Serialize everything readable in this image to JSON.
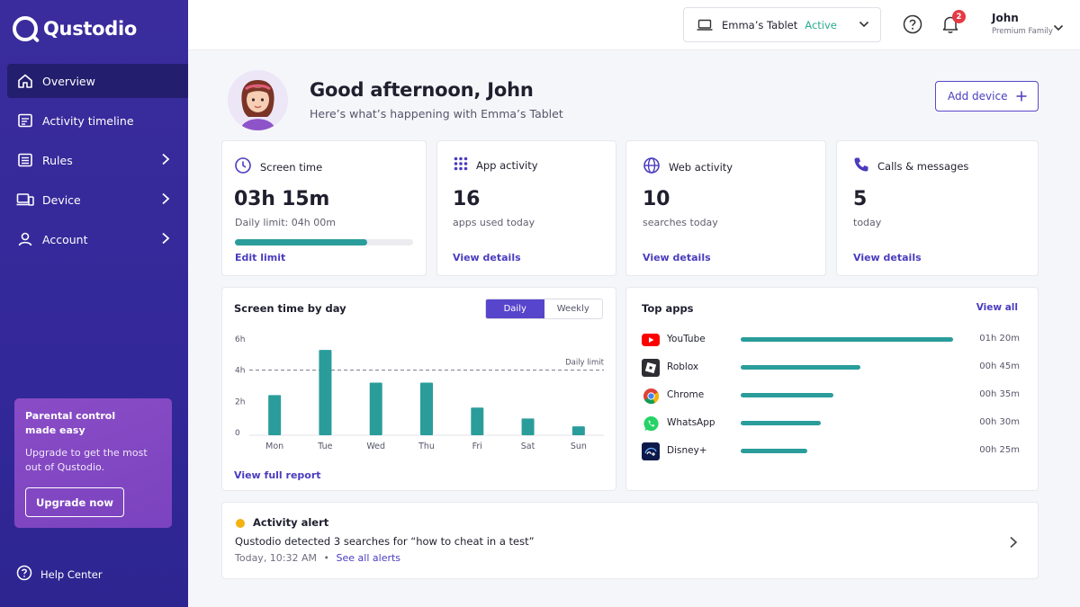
{
  "brand": {
    "name": "Qustodio"
  },
  "sidebar": {
    "items": [
      {
        "label": "Overview",
        "icon": "home-icon"
      },
      {
        "label": "Activity timeline",
        "icon": "timeline-icon"
      },
      {
        "label": "Rules",
        "icon": "rules-icon"
      },
      {
        "label": "Device",
        "icon": "device-icon"
      },
      {
        "label": "Account",
        "icon": "account-icon"
      }
    ],
    "promo": {
      "title": "Parental control made easy",
      "text": "Upgrade to get the most out of Qustodio.",
      "button": "Upgrade now"
    },
    "help": "Help Center"
  },
  "topbar": {
    "device_name": "Emma’s Tablet",
    "device_status": "Active",
    "notification_count": "2",
    "user_name": "John",
    "user_plan": "Premium Family"
  },
  "header": {
    "greeting": "Good afternoon, John",
    "subtitle": "Here’s what’s happening with Emma’s Tablet",
    "add_device": "Add device"
  },
  "stats": {
    "screen_time": {
      "title": "Screen time",
      "value": "03h 15m",
      "sub": "Daily limit: 04h 00m",
      "link": "Edit limit",
      "progress": 0.74
    },
    "app_activity": {
      "title": "App activity",
      "value": "16",
      "sub": "apps used today",
      "link": "View details"
    },
    "web_activity": {
      "title": "Web activity",
      "value": "10",
      "sub": "searches today",
      "link": "View details"
    },
    "calls": {
      "title": "Calls & messages",
      "value": "5",
      "sub": "today",
      "link": "View details"
    }
  },
  "screen_chart": {
    "title": "Screen time by day",
    "tabs": {
      "daily": "Daily",
      "weekly": "Weekly"
    },
    "limit_label": "Daily limit",
    "link": "View full report"
  },
  "chart_data": {
    "type": "bar",
    "categories": [
      "Mon",
      "Tue",
      "Wed",
      "Thu",
      "Fri",
      "Sat",
      "Sun"
    ],
    "values": [
      2.4,
      5.3,
      3.2,
      3.2,
      1.6,
      0.9,
      0.4
    ],
    "yticks": [
      "0",
      "2h",
      "4h",
      "6h"
    ],
    "ylim": [
      0,
      6
    ],
    "limit": 4,
    "color": "#2a9d9b"
  },
  "top_apps": {
    "title": "Top apps",
    "view_all": "View all",
    "apps": [
      {
        "name": "YouTube",
        "time": "01h 20m",
        "minutes": 80,
        "icon": "youtube-icon"
      },
      {
        "name": "Roblox",
        "time": "00h 45m",
        "minutes": 45,
        "icon": "roblox-icon"
      },
      {
        "name": "Chrome",
        "time": "00h 35m",
        "minutes": 35,
        "icon": "chrome-icon"
      },
      {
        "name": "WhatsApp",
        "time": "00h 30m",
        "minutes": 30,
        "icon": "whatsapp-icon"
      },
      {
        "name": "Disney+",
        "time": "00h 25m",
        "minutes": 25,
        "icon": "disney-plus-icon"
      }
    ]
  },
  "alert": {
    "title": "Activity alert",
    "text": "Qustodio detected 3 searches for “how to cheat in a test”",
    "time": "Today, 10:32 AM",
    "dot": "•",
    "link": "See all alerts"
  }
}
